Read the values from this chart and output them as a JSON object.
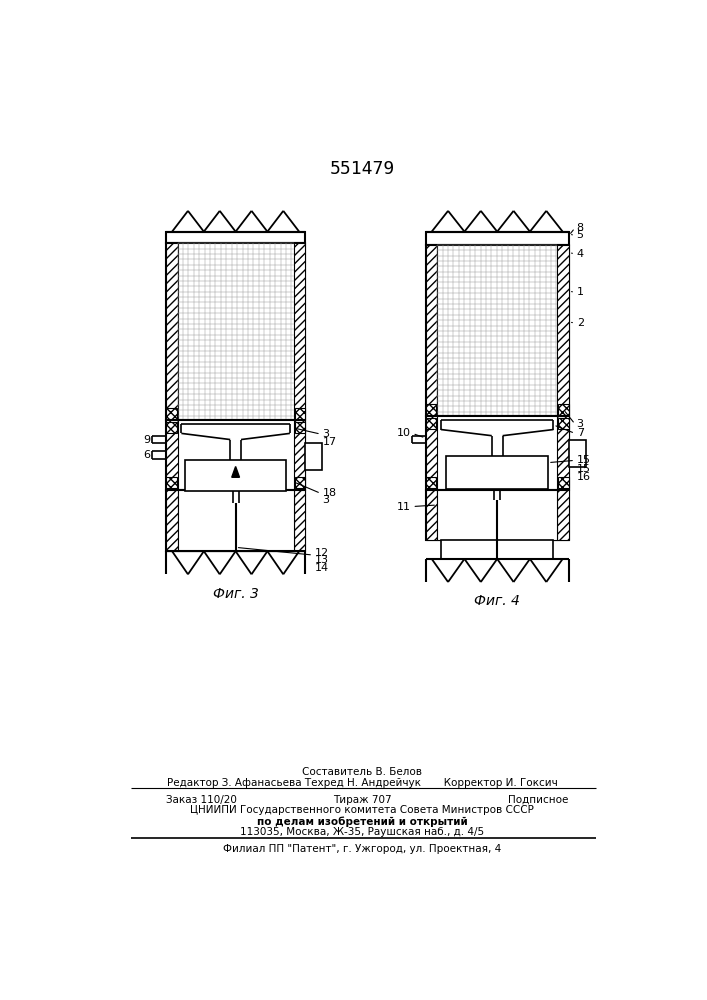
{
  "title": "551479",
  "fig3_label": "Фиг. 3",
  "fig4_label": "Фиг. 4",
  "bg_color": "#ffffff"
}
